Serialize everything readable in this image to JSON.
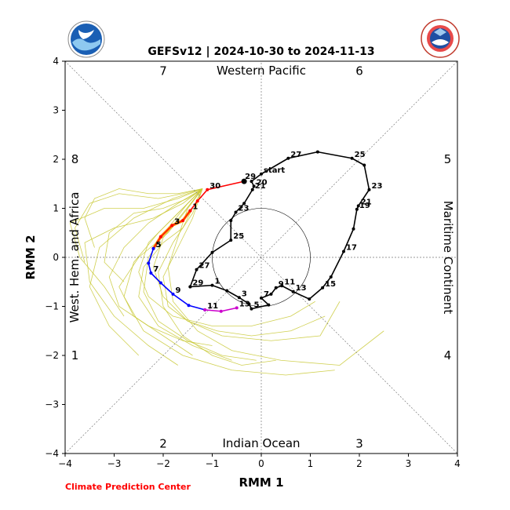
{
  "chart_data": {
    "type": "line",
    "title": "GEFSv12 | 2024-10-30 to 2024-11-13",
    "xlabel": "RMM 1",
    "ylabel": "RMM 2",
    "xlim": [
      -4,
      4
    ],
    "ylim": [
      -4,
      4
    ],
    "xticks": [
      "−4",
      "−3",
      "−2",
      "−1",
      "0",
      "1",
      "2",
      "3",
      "4"
    ],
    "yticks": [
      "−4",
      "−3",
      "−2",
      "−1",
      "0",
      "1",
      "2",
      "3",
      "4"
    ],
    "grid": false,
    "phase_numbers": [
      "1",
      "2",
      "3",
      "4",
      "5",
      "6",
      "7",
      "8"
    ],
    "region_labels": {
      "top": "Western Pacific",
      "bottom": "Indian Ocean",
      "left": "West. Hem. and Africa",
      "right": "Maritime Continent"
    },
    "colors": {
      "observed": "#000000",
      "forecast_week1": "#ff0000",
      "forecast_week2": "#ff8c00",
      "forecast_week3": "#0000ff",
      "forecast_week4": "#cc00cc",
      "ensemble": "#c8c832",
      "credit": "#ff0000"
    },
    "observed": {
      "points": [
        {
          "x": -1.45,
          "y": -0.6,
          "label": "29"
        },
        {
          "x": -1.0,
          "y": -0.57,
          "label": "1"
        },
        {
          "x": -0.7,
          "y": -0.68,
          "label": ""
        },
        {
          "x": -0.45,
          "y": -0.82,
          "label": "3"
        },
        {
          "x": -0.25,
          "y": -0.95,
          "label": ""
        },
        {
          "x": -0.2,
          "y": -1.05,
          "label": "5"
        },
        {
          "x": 0.15,
          "y": -0.97,
          "label": ""
        },
        {
          "x": 0.0,
          "y": -0.83,
          "label": "7"
        },
        {
          "x": 0.2,
          "y": -0.75,
          "label": ""
        },
        {
          "x": 0.3,
          "y": -0.62,
          "label": "9"
        },
        {
          "x": 0.42,
          "y": -0.58,
          "label": "11"
        },
        {
          "x": 0.65,
          "y": -0.7,
          "label": "13"
        },
        {
          "x": 0.98,
          "y": -0.85,
          "label": ""
        },
        {
          "x": 1.25,
          "y": -0.62,
          "label": "15"
        },
        {
          "x": 1.42,
          "y": -0.4,
          "label": ""
        },
        {
          "x": 1.68,
          "y": 0.12,
          "label": "17"
        },
        {
          "x": 1.88,
          "y": 0.58,
          "label": ""
        },
        {
          "x": 1.95,
          "y": 0.98,
          "label": "19"
        },
        {
          "x": 1.98,
          "y": 1.05,
          "label": "21"
        },
        {
          "x": 2.2,
          "y": 1.38,
          "label": "23"
        },
        {
          "x": 2.1,
          "y": 1.88,
          "label": ""
        },
        {
          "x": 1.85,
          "y": 2.02,
          "label": "25"
        },
        {
          "x": 1.15,
          "y": 2.15,
          "label": ""
        },
        {
          "x": 0.55,
          "y": 2.02,
          "label": "27"
        },
        {
          "x": 0.0,
          "y": 1.7,
          "label": "start"
        },
        {
          "x": -0.2,
          "y": 1.55,
          "label": ""
        },
        {
          "x": -0.15,
          "y": 1.45,
          "label": "20"
        },
        {
          "x": -0.18,
          "y": 1.38,
          "label": "21"
        },
        {
          "x": -0.35,
          "y": 1.1,
          "label": ""
        },
        {
          "x": -0.52,
          "y": 0.92,
          "label": "23"
        },
        {
          "x": -0.62,
          "y": 0.75,
          "label": ""
        },
        {
          "x": -0.62,
          "y": 0.35,
          "label": "25"
        },
        {
          "x": -1.0,
          "y": 0.1,
          "label": ""
        },
        {
          "x": -1.32,
          "y": -0.25,
          "label": "27"
        },
        {
          "x": -1.45,
          "y": -0.6,
          "label": ""
        }
      ]
    },
    "forecast": {
      "start": {
        "x": -0.35,
        "y": 1.55,
        "label": "29"
      },
      "week1": [
        {
          "x": -0.35,
          "y": 1.55,
          "label": ""
        },
        {
          "x": -1.1,
          "y": 1.38,
          "label": "30"
        },
        {
          "x": -1.3,
          "y": 1.15,
          "label": ""
        },
        {
          "x": -1.45,
          "y": 0.95,
          "label": "1"
        }
      ],
      "week2": [
        {
          "x": -1.45,
          "y": 0.95,
          "label": ""
        },
        {
          "x": -1.6,
          "y": 0.75,
          "label": ""
        },
        {
          "x": -1.82,
          "y": 0.65,
          "label": "3"
        },
        {
          "x": -2.05,
          "y": 0.42,
          "label": ""
        },
        {
          "x": -2.2,
          "y": 0.18,
          "label": "5"
        }
      ],
      "week3": [
        {
          "x": -2.2,
          "y": 0.18,
          "label": ""
        },
        {
          "x": -2.3,
          "y": -0.12,
          "label": ""
        },
        {
          "x": -2.25,
          "y": -0.32,
          "label": "7"
        },
        {
          "x": -2.05,
          "y": -0.52,
          "label": ""
        },
        {
          "x": -1.8,
          "y": -0.75,
          "label": "9"
        },
        {
          "x": -1.48,
          "y": -0.98,
          "label": ""
        },
        {
          "x": -1.15,
          "y": -1.07,
          "label": "11"
        }
      ],
      "week4": [
        {
          "x": -1.15,
          "y": -1.07,
          "label": ""
        },
        {
          "x": -0.82,
          "y": -1.1,
          "label": ""
        },
        {
          "x": -0.5,
          "y": -1.03,
          "label": "13"
        }
      ]
    },
    "ensemble": [
      [
        [
          -1.2,
          1.4
        ],
        [
          -1.6,
          1.1
        ],
        [
          -2.2,
          0.8
        ],
        [
          -3.0,
          0.6
        ],
        [
          -3.6,
          0.3
        ],
        [
          -3.5,
          -0.5
        ],
        [
          -3.0,
          -1.2
        ],
        [
          -2.3,
          -1.8
        ],
        [
          -1.7,
          -2.2
        ]
      ],
      [
        [
          -1.2,
          1.4
        ],
        [
          -1.5,
          1.0
        ],
        [
          -1.9,
          0.5
        ],
        [
          -2.5,
          0.0
        ],
        [
          -2.9,
          -0.6
        ],
        [
          -2.6,
          -1.2
        ],
        [
          -2.0,
          -1.6
        ],
        [
          -1.4,
          -2.0
        ]
      ],
      [
        [
          -1.2,
          1.4
        ],
        [
          -1.7,
          1.2
        ],
        [
          -2.4,
          1.0
        ],
        [
          -3.2,
          1.0
        ],
        [
          -3.9,
          0.7
        ],
        [
          -3.7,
          0.0
        ],
        [
          -3.2,
          -0.6
        ],
        [
          -2.8,
          -1.2
        ]
      ],
      [
        [
          -1.2,
          1.4
        ],
        [
          -1.4,
          0.9
        ],
        [
          -1.8,
          0.3
        ],
        [
          -2.1,
          -0.3
        ],
        [
          -2.0,
          -1.0
        ],
        [
          -1.6,
          -1.6
        ],
        [
          -1.0,
          -2.0
        ],
        [
          -0.4,
          -2.2
        ],
        [
          0.3,
          -2.1
        ]
      ],
      [
        [
          -1.2,
          1.4
        ],
        [
          -1.6,
          1.3
        ],
        [
          -2.1,
          1.2
        ],
        [
          -2.9,
          1.3
        ],
        [
          -3.5,
          1.1
        ],
        [
          -3.8,
          0.6
        ],
        [
          -3.6,
          -0.1
        ]
      ],
      [
        [
          -1.2,
          1.4
        ],
        [
          -1.5,
          1.1
        ],
        [
          -1.9,
          0.7
        ],
        [
          -2.3,
          0.3
        ],
        [
          -2.5,
          -0.3
        ],
        [
          -2.3,
          -0.8
        ],
        [
          -1.8,
          -1.2
        ],
        [
          -1.0,
          -1.4
        ],
        [
          -0.2,
          -1.4
        ],
        [
          0.6,
          -1.2
        ],
        [
          1.1,
          -0.9
        ]
      ],
      [
        [
          -1.2,
          1.4
        ],
        [
          -1.6,
          0.9
        ],
        [
          -2.0,
          0.4
        ],
        [
          -2.2,
          -0.2
        ],
        [
          -2.0,
          -0.8
        ],
        [
          -1.5,
          -1.3
        ],
        [
          -0.8,
          -1.6
        ],
        [
          0.2,
          -1.7
        ],
        [
          1.2,
          -1.6
        ],
        [
          1.6,
          -0.9
        ]
      ],
      [
        [
          -1.2,
          1.4
        ],
        [
          -1.5,
          1.0
        ],
        [
          -1.7,
          0.4
        ],
        [
          -1.9,
          -0.2
        ],
        [
          -1.8,
          -0.9
        ],
        [
          -1.3,
          -1.5
        ],
        [
          -0.6,
          -1.9
        ],
        [
          0.4,
          -2.1
        ],
        [
          1.6,
          -2.2
        ],
        [
          2.5,
          -1.5
        ]
      ],
      [
        [
          -1.2,
          1.4
        ],
        [
          -1.8,
          1.2
        ],
        [
          -2.6,
          0.8
        ],
        [
          -3.3,
          0.2
        ],
        [
          -3.5,
          -0.6
        ],
        [
          -3.1,
          -1.4
        ],
        [
          -2.5,
          -2.0
        ]
      ],
      [
        [
          -1.2,
          1.4
        ],
        [
          -1.4,
          1.0
        ],
        [
          -1.6,
          0.6
        ],
        [
          -2.0,
          0.3
        ],
        [
          -2.4,
          -0.2
        ],
        [
          -2.5,
          -0.8
        ],
        [
          -2.1,
          -1.4
        ],
        [
          -1.4,
          -1.8
        ],
        [
          -0.6,
          -2.1
        ]
      ],
      [
        [
          -1.2,
          1.4
        ],
        [
          -1.7,
          1.1
        ],
        [
          -2.3,
          0.7
        ],
        [
          -2.8,
          0.2
        ],
        [
          -3.1,
          -0.4
        ],
        [
          -2.9,
          -1.0
        ],
        [
          -2.3,
          -1.4
        ],
        [
          -1.6,
          -1.7
        ],
        [
          -1.0,
          -1.8
        ]
      ],
      [
        [
          -1.2,
          1.4
        ],
        [
          -1.5,
          1.2
        ],
        [
          -2.0,
          1.0
        ],
        [
          -2.6,
          0.9
        ],
        [
          -3.1,
          0.5
        ],
        [
          -3.2,
          -0.1
        ],
        [
          -2.8,
          -0.5
        ]
      ],
      [
        [
          -1.2,
          1.4
        ],
        [
          -1.6,
          1.0
        ],
        [
          -2.1,
          0.5
        ],
        [
          -2.6,
          -0.1
        ],
        [
          -2.8,
          -0.8
        ],
        [
          -2.4,
          -1.5
        ],
        [
          -1.6,
          -2.0
        ],
        [
          -0.6,
          -2.3
        ],
        [
          0.5,
          -2.4
        ],
        [
          1.5,
          -2.3
        ]
      ],
      [
        [
          -1.2,
          1.4
        ],
        [
          -1.4,
          0.8
        ],
        [
          -1.7,
          0.2
        ],
        [
          -2.0,
          -0.4
        ],
        [
          -1.9,
          -1.0
        ],
        [
          -1.5,
          -1.3
        ],
        [
          -0.9,
          -1.5
        ],
        [
          -0.2,
          -1.6
        ],
        [
          0.6,
          -1.5
        ],
        [
          1.3,
          -1.2
        ]
      ],
      [
        [
          -1.2,
          1.4
        ],
        [
          -1.7,
          1.3
        ],
        [
          -2.3,
          1.3
        ],
        [
          -2.9,
          1.4
        ],
        [
          -3.4,
          1.2
        ],
        [
          -3.6,
          0.8
        ],
        [
          -3.4,
          0.2
        ]
      ],
      [
        [
          -1.2,
          1.4
        ],
        [
          -1.5,
          1.1
        ],
        [
          -1.9,
          0.6
        ],
        [
          -2.3,
          0.0
        ],
        [
          -2.4,
          -0.7
        ],
        [
          -2.1,
          -1.3
        ],
        [
          -1.5,
          -1.7
        ],
        [
          -0.8,
          -2.0
        ],
        [
          -0.1,
          -2.1
        ]
      ]
    ]
  }
}
